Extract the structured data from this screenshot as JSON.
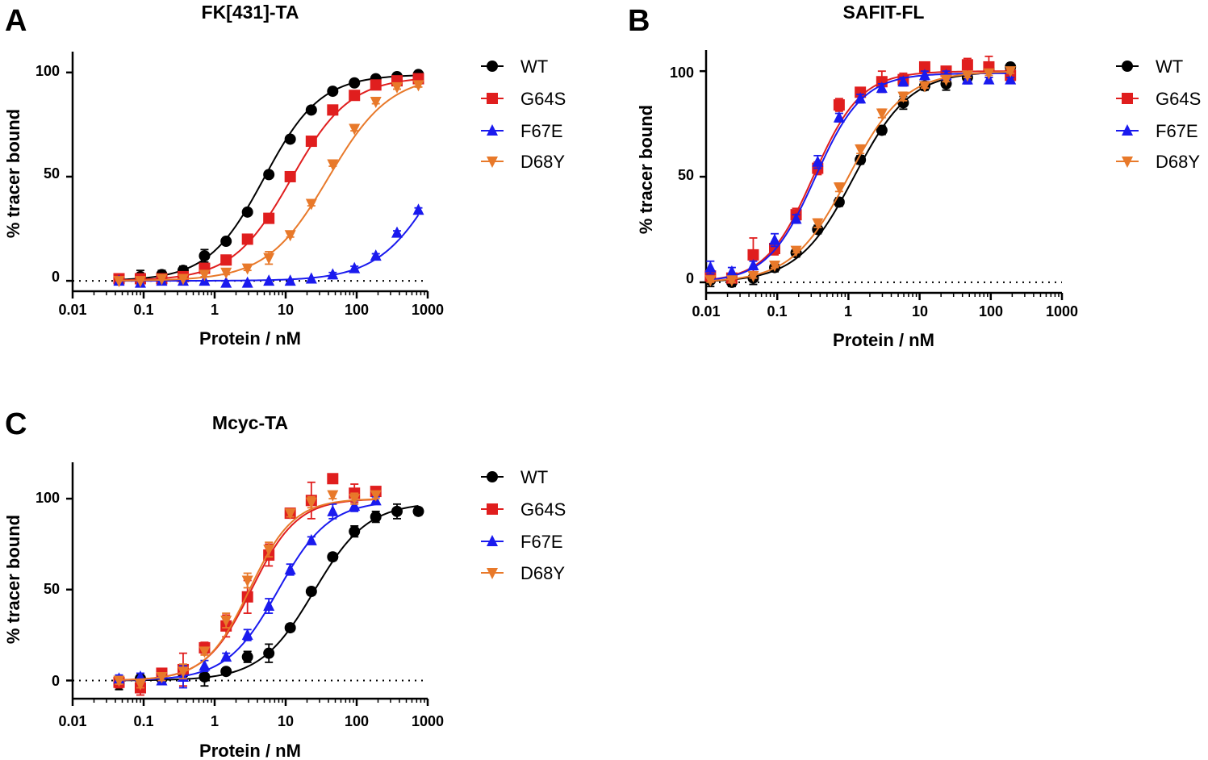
{
  "figure": {
    "series_colors": {
      "WT": "#000000",
      "G64S": "#e01e1e",
      "F67E": "#1a1aee",
      "D68Y": "#e8792a"
    },
    "series_markers": {
      "WT": "circle",
      "G64S": "square",
      "F67E": "triangle-up",
      "D68Y": "triangle-down"
    }
  },
  "chart_data": [
    {
      "panel": "A",
      "title": "FK[431]-TA",
      "type": "scatter",
      "xscale": "log",
      "xlabel": "Protein / nM",
      "ylabel": "% tracer bound",
      "xlim": [
        0.01,
        1000
      ],
      "ylim": [
        -5,
        110
      ],
      "xticks": [
        "0.01",
        "0.1",
        "1",
        "10",
        "100",
        "1000"
      ],
      "yticks": [
        "0",
        "50",
        "100"
      ],
      "reference_line_y": 0,
      "legend": [
        "WT",
        "G64S",
        "F67E",
        "D68Y"
      ],
      "series": [
        {
          "name": "WT",
          "fit": {
            "ec50": 5.0,
            "hill": 1.1,
            "top": 99,
            "bottom": 0
          },
          "x": [
            0.045,
            0.09,
            0.18,
            0.36,
            0.72,
            1.45,
            2.9,
            5.8,
            11.6,
            23,
            46,
            93,
            186,
            370,
            740
          ],
          "y": [
            1,
            2,
            3,
            5,
            12,
            19,
            33,
            51,
            68,
            82,
            91,
            95,
            97,
            98,
            99
          ],
          "err": [
            0,
            3,
            2,
            2,
            3,
            1,
            1,
            1,
            1,
            1,
            1,
            1,
            1,
            1,
            1
          ]
        },
        {
          "name": "G64S",
          "fit": {
            "ec50": 12,
            "hill": 1.05,
            "top": 98,
            "bottom": 0
          },
          "x": [
            0.045,
            0.09,
            0.18,
            0.36,
            0.72,
            1.45,
            2.9,
            5.8,
            11.6,
            23,
            46,
            93,
            186,
            370,
            740
          ],
          "y": [
            1,
            1,
            1,
            2,
            6,
            10,
            20,
            30,
            50,
            67,
            82,
            89,
            94,
            96,
            97
          ],
          "err": [
            0,
            0,
            0,
            0,
            1,
            1,
            1,
            1,
            1,
            1,
            1,
            1,
            1,
            1,
            1
          ]
        },
        {
          "name": "F67E",
          "fit": {
            "ec50": 1600,
            "hill": 1.0,
            "top": 100,
            "bottom": 0
          },
          "x": [
            0.045,
            0.09,
            0.18,
            0.36,
            0.72,
            1.45,
            2.9,
            5.8,
            11.6,
            23,
            46,
            93,
            186,
            370,
            740
          ],
          "y": [
            0,
            -1,
            0,
            0,
            0,
            -1,
            -1,
            0,
            0,
            1,
            3,
            6,
            12,
            23,
            34
          ],
          "err": [
            0,
            0,
            0,
            0,
            0,
            0,
            0,
            0,
            0,
            0,
            1,
            1,
            1,
            1,
            1
          ]
        },
        {
          "name": "D68Y",
          "fit": {
            "ec50": 40,
            "hill": 1.0,
            "top": 99,
            "bottom": 0
          },
          "x": [
            0.045,
            0.09,
            0.18,
            0.36,
            0.72,
            1.45,
            2.9,
            5.8,
            11.6,
            23,
            46,
            93,
            186,
            370,
            740
          ],
          "y": [
            0,
            0,
            1,
            1,
            3,
            4,
            6,
            11,
            22,
            37,
            56,
            73,
            86,
            93,
            94
          ],
          "err": [
            0,
            0,
            0,
            0,
            1,
            1,
            1,
            3,
            1,
            1,
            1,
            1,
            1,
            1,
            1
          ]
        }
      ]
    },
    {
      "panel": "B",
      "title": "SAFIT-FL",
      "type": "scatter",
      "xscale": "log",
      "xlabel": "Protein / nM",
      "ylabel": "% tracer bound",
      "xlim": [
        0.01,
        1000
      ],
      "ylim": [
        -5,
        110
      ],
      "xticks": [
        "0.01",
        "0.1",
        "1",
        "10",
        "100",
        "1000"
      ],
      "yticks": [
        "0",
        "50",
        "100"
      ],
      "reference_line_y": 0,
      "legend": [
        "WT",
        "G64S",
        "F67E",
        "D68Y"
      ],
      "series": [
        {
          "name": "WT",
          "fit": {
            "ec50": 1.2,
            "hill": 1.1,
            "top": 100,
            "bottom": 0
          },
          "x": [
            0.0115,
            0.023,
            0.046,
            0.092,
            0.184,
            0.37,
            0.74,
            1.47,
            2.95,
            5.9,
            11.8,
            23.6,
            47,
            94,
            189
          ],
          "y": [
            1,
            0,
            2,
            7,
            14,
            25,
            38,
            58,
            72,
            85,
            93,
            94,
            97,
            101,
            102
          ],
          "err": [
            3,
            2,
            3,
            2,
            2,
            2,
            2,
            2,
            2,
            3,
            2,
            3,
            2,
            2,
            1
          ]
        },
        {
          "name": "G64S",
          "fit": {
            "ec50": 0.32,
            "hill": 1.3,
            "top": 100,
            "bottom": 0
          },
          "x": [
            0.0115,
            0.023,
            0.046,
            0.092,
            0.184,
            0.37,
            0.74,
            1.47,
            2.95,
            5.9,
            11.8,
            23.6,
            47,
            94,
            189
          ],
          "y": [
            3,
            2,
            13,
            16,
            32,
            54,
            84,
            90,
            95,
            96,
            102,
            100,
            103,
            102,
            98
          ],
          "err": [
            2,
            2,
            8,
            3,
            3,
            3,
            3,
            2,
            5,
            3,
            2,
            2,
            3,
            5,
            2
          ]
        },
        {
          "name": "F67E",
          "fit": {
            "ec50": 0.34,
            "hill": 1.3,
            "top": 99,
            "bottom": 0
          },
          "x": [
            0.0115,
            0.023,
            0.046,
            0.092,
            0.184,
            0.37,
            0.74,
            1.47,
            2.95,
            5.9,
            11.8,
            23.6,
            47,
            94,
            189
          ],
          "y": [
            7,
            5,
            8,
            20,
            30,
            57,
            78,
            87,
            92,
            95,
            98,
            98,
            96,
            96,
            96
          ],
          "err": [
            3,
            2,
            2,
            3,
            2,
            3,
            2,
            2,
            2,
            2,
            2,
            2,
            2,
            1,
            1
          ]
        },
        {
          "name": "D68Y",
          "fit": {
            "ec50": 1.0,
            "hill": 1.1,
            "top": 100,
            "bottom": 0
          },
          "x": [
            0.0115,
            0.023,
            0.046,
            0.092,
            0.184,
            0.37,
            0.74,
            1.47,
            2.95,
            5.9,
            11.8,
            23.6,
            47,
            94,
            189
          ],
          "y": [
            1,
            1,
            3,
            8,
            15,
            28,
            45,
            63,
            80,
            88,
            93,
            96,
            98,
            99,
            100
          ],
          "err": [
            1,
            1,
            1,
            1,
            1,
            2,
            2,
            2,
            2,
            2,
            1,
            1,
            1,
            1,
            1
          ]
        }
      ]
    },
    {
      "panel": "C",
      "title": "Mcyc-TA",
      "type": "scatter",
      "xscale": "log",
      "xlabel": "Protein / nM",
      "ylabel": "% tracer bound",
      "xlim": [
        0.01,
        1000
      ],
      "ylim": [
        -10,
        120
      ],
      "xticks": [
        "0.01",
        "0.1",
        "1",
        "10",
        "100",
        "1000"
      ],
      "yticks": [
        "0",
        "50",
        "100"
      ],
      "reference_line_y": 0,
      "legend": [
        "WT",
        "G64S",
        "F67E",
        "D68Y"
      ],
      "series": [
        {
          "name": "WT",
          "fit": {
            "ec50": 25,
            "hill": 1.15,
            "top": 98,
            "bottom": 0
          },
          "x": [
            0.045,
            0.09,
            0.18,
            0.36,
            0.72,
            1.45,
            2.9,
            5.8,
            11.6,
            23,
            46,
            93,
            186,
            370,
            740
          ],
          "y": [
            -2,
            1,
            1,
            4,
            2,
            5,
            13,
            15,
            29,
            49,
            68,
            82,
            90,
            93,
            93
          ],
          "err": [
            3,
            2,
            2,
            3,
            5,
            1,
            3,
            5,
            2,
            2,
            2,
            3,
            3,
            4,
            2
          ]
        },
        {
          "name": "G64S",
          "fit": {
            "ec50": 3.3,
            "hill": 1.35,
            "top": 100,
            "bottom": 0
          },
          "x": [
            0.045,
            0.09,
            0.18,
            0.36,
            0.72,
            1.45,
            2.9,
            5.8,
            11.6,
            23,
            46,
            93,
            186
          ],
          "y": [
            -1,
            -4,
            4,
            6,
            18,
            30,
            46,
            69,
            92,
            99,
            111,
            103,
            104
          ],
          "err": [
            3,
            4,
            2,
            9,
            3,
            6,
            9,
            6,
            2,
            10,
            2,
            5,
            2
          ]
        },
        {
          "name": "F67E",
          "fit": {
            "ec50": 7.8,
            "hill": 1.2,
            "top": 99,
            "bottom": 0
          },
          "x": [
            0.045,
            0.09,
            0.18,
            0.36,
            0.72,
            1.45,
            2.9,
            5.8,
            11.6,
            23,
            46,
            93,
            186
          ],
          "y": [
            1,
            2,
            0,
            2,
            8,
            13,
            25,
            41,
            61,
            77,
            93,
            96,
            99
          ],
          "err": [
            2,
            2,
            2,
            6,
            3,
            2,
            3,
            4,
            3,
            2,
            4,
            3,
            2
          ]
        },
        {
          "name": "D68Y",
          "fit": {
            "ec50": 3.1,
            "hill": 1.4,
            "top": 100,
            "bottom": 0
          },
          "x": [
            0.045,
            0.09,
            0.18,
            0.36,
            0.72,
            1.45,
            2.9,
            5.8,
            11.6,
            23,
            46,
            93,
            186
          ],
          "y": [
            0,
            -2,
            2,
            5,
            16,
            33,
            55,
            72,
            92,
            98,
            102,
            100,
            102
          ],
          "err": [
            2,
            2,
            2,
            4,
            2,
            4,
            4,
            4,
            2,
            3,
            2,
            3,
            2
          ]
        }
      ]
    }
  ]
}
